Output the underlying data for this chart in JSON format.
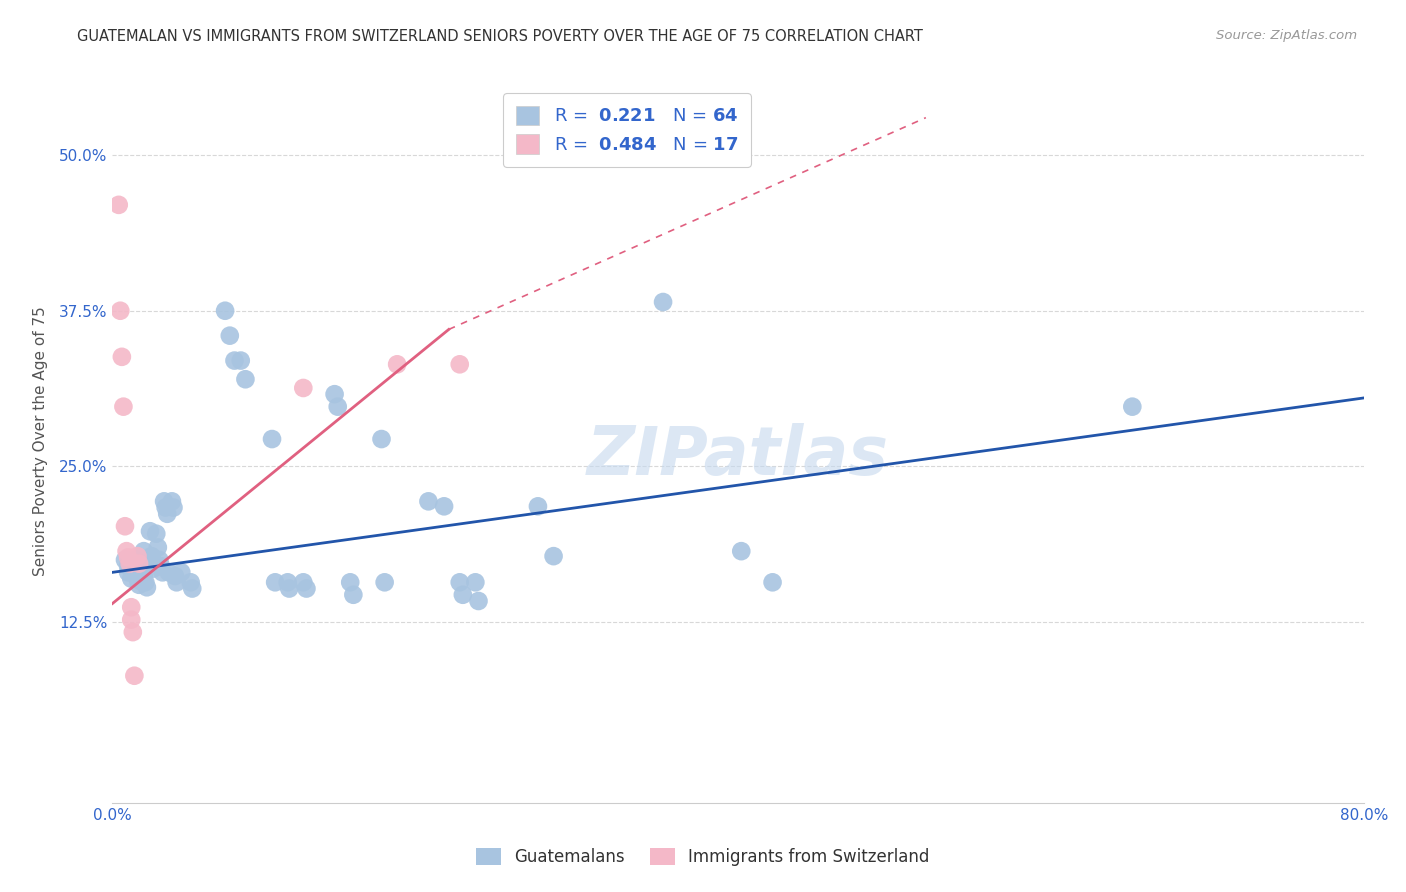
{
  "title": "GUATEMALAN VS IMMIGRANTS FROM SWITZERLAND SENIORS POVERTY OVER THE AGE OF 75 CORRELATION CHART",
  "source": "Source: ZipAtlas.com",
  "ylabel": "Seniors Poverty Over the Age of 75",
  "ytick_values": [
    0.125,
    0.25,
    0.375,
    0.5
  ],
  "xlim": [
    0.0,
    0.8
  ],
  "ylim": [
    -0.02,
    0.56
  ],
  "watermark": "ZIPatlas",
  "blue_color": "#a8c4e0",
  "pink_color": "#f4b8c8",
  "blue_line_color": "#2255aa",
  "pink_line_color": "#e06080",
  "blue_line": [
    0.0,
    0.165,
    0.8,
    0.305
  ],
  "pink_line_solid": [
    0.0,
    0.14,
    0.215,
    0.36
  ],
  "pink_line_dash": [
    0.215,
    0.36,
    0.52,
    0.53
  ],
  "blue_scatter": [
    [
      0.008,
      0.175
    ],
    [
      0.01,
      0.17
    ],
    [
      0.01,
      0.165
    ],
    [
      0.012,
      0.16
    ],
    [
      0.015,
      0.175
    ],
    [
      0.015,
      0.168
    ],
    [
      0.016,
      0.16
    ],
    [
      0.017,
      0.155
    ],
    [
      0.018,
      0.158
    ],
    [
      0.02,
      0.182
    ],
    [
      0.02,
      0.172
    ],
    [
      0.02,
      0.167
    ],
    [
      0.02,
      0.162
    ],
    [
      0.021,
      0.157
    ],
    [
      0.022,
      0.153
    ],
    [
      0.024,
      0.198
    ],
    [
      0.025,
      0.178
    ],
    [
      0.026,
      0.168
    ],
    [
      0.028,
      0.196
    ],
    [
      0.029,
      0.185
    ],
    [
      0.03,
      0.175
    ],
    [
      0.031,
      0.17
    ],
    [
      0.032,
      0.165
    ],
    [
      0.033,
      0.222
    ],
    [
      0.034,
      0.217
    ],
    [
      0.035,
      0.212
    ],
    [
      0.036,
      0.165
    ],
    [
      0.038,
      0.222
    ],
    [
      0.039,
      0.217
    ],
    [
      0.04,
      0.162
    ],
    [
      0.041,
      0.157
    ],
    [
      0.044,
      0.165
    ],
    [
      0.05,
      0.157
    ],
    [
      0.051,
      0.152
    ],
    [
      0.072,
      0.375
    ],
    [
      0.075,
      0.355
    ],
    [
      0.078,
      0.335
    ],
    [
      0.082,
      0.335
    ],
    [
      0.085,
      0.32
    ],
    [
      0.102,
      0.272
    ],
    [
      0.104,
      0.157
    ],
    [
      0.112,
      0.157
    ],
    [
      0.113,
      0.152
    ],
    [
      0.122,
      0.157
    ],
    [
      0.124,
      0.152
    ],
    [
      0.142,
      0.308
    ],
    [
      0.144,
      0.298
    ],
    [
      0.152,
      0.157
    ],
    [
      0.154,
      0.147
    ],
    [
      0.172,
      0.272
    ],
    [
      0.174,
      0.157
    ],
    [
      0.202,
      0.222
    ],
    [
      0.212,
      0.218
    ],
    [
      0.222,
      0.157
    ],
    [
      0.224,
      0.147
    ],
    [
      0.232,
      0.157
    ],
    [
      0.234,
      0.142
    ],
    [
      0.272,
      0.218
    ],
    [
      0.282,
      0.178
    ],
    [
      0.352,
      0.382
    ],
    [
      0.402,
      0.182
    ],
    [
      0.422,
      0.157
    ],
    [
      0.652,
      0.298
    ]
  ],
  "pink_scatter": [
    [
      0.004,
      0.46
    ],
    [
      0.005,
      0.375
    ],
    [
      0.006,
      0.338
    ],
    [
      0.007,
      0.298
    ],
    [
      0.008,
      0.202
    ],
    [
      0.009,
      0.182
    ],
    [
      0.01,
      0.177
    ],
    [
      0.011,
      0.172
    ],
    [
      0.012,
      0.137
    ],
    [
      0.012,
      0.127
    ],
    [
      0.013,
      0.117
    ],
    [
      0.014,
      0.082
    ],
    [
      0.016,
      0.178
    ],
    [
      0.017,
      0.172
    ],
    [
      0.122,
      0.313
    ],
    [
      0.182,
      0.332
    ],
    [
      0.222,
      0.332
    ]
  ],
  "background_color": "#ffffff",
  "grid_color": "#d8d8d8"
}
